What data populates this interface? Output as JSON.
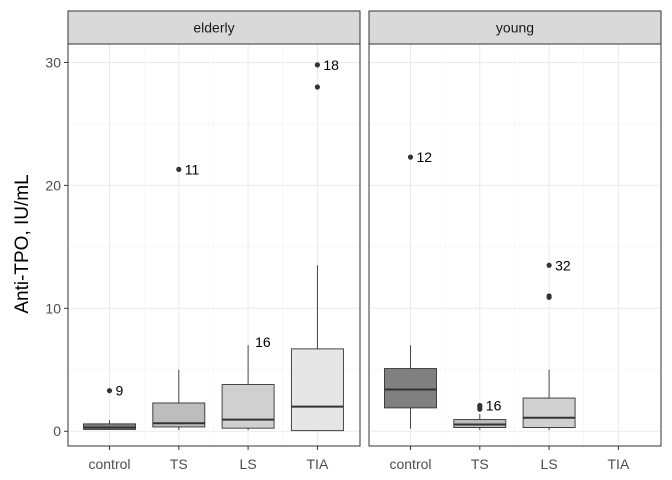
{
  "chart_data": {
    "type": "boxplot",
    "ylabel": "Anti-TPO, IU/mL",
    "ylim": [
      -1.2,
      31.5
    ],
    "y_ticks": [
      0,
      10,
      20,
      30
    ],
    "categories": [
      "control",
      "TS",
      "LS",
      "TIA"
    ],
    "grid": true,
    "panels": [
      {
        "name": "elderly",
        "boxes": [
          {
            "category": "control",
            "min": 0.1,
            "q1": 0.15,
            "median": 0.3,
            "q3": 0.6,
            "max": 0.9,
            "fill": "#808080",
            "outliers": [
              {
                "y": 3.3,
                "label": "9"
              }
            ]
          },
          {
            "category": "TS",
            "min": 0.1,
            "q1": 0.35,
            "median": 0.65,
            "q3": 2.3,
            "max": 5.0,
            "fill": "#bdbdbd",
            "outliers": [
              {
                "y": 21.3,
                "label": "11"
              }
            ]
          },
          {
            "category": "LS",
            "min": 0.1,
            "q1": 0.25,
            "median": 0.95,
            "q3": 3.8,
            "max": 7.0,
            "fill": "#d0d0d0",
            "outliers": [],
            "annotations": [
              {
                "y": 7.0,
                "label": "16"
              }
            ]
          },
          {
            "category": "TIA",
            "min": 0.0,
            "q1": 0.05,
            "median": 2.0,
            "q3": 6.7,
            "max": 13.5,
            "fill": "#e6e6e6",
            "outliers": [
              {
                "y": 29.8,
                "label": "18"
              },
              {
                "y": 28.0,
                "label": ""
              }
            ]
          }
        ]
      },
      {
        "name": "young",
        "boxes": [
          {
            "category": "control",
            "min": 0.2,
            "q1": 1.9,
            "median": 3.4,
            "q3": 5.1,
            "max": 7.0,
            "fill": "#808080",
            "outliers": [
              {
                "y": 22.3,
                "label": "12"
              }
            ]
          },
          {
            "category": "TS",
            "min": 0.1,
            "q1": 0.3,
            "median": 0.55,
            "q3": 0.95,
            "max": 1.4,
            "fill": "#bdbdbd",
            "outliers": [
              {
                "y": 2.1,
                "label": "16"
              },
              {
                "y": 2.0,
                "label": ""
              },
              {
                "y": 1.8,
                "label": ""
              }
            ]
          },
          {
            "category": "LS",
            "min": 0.1,
            "q1": 0.3,
            "median": 1.1,
            "q3": 2.7,
            "max": 5.0,
            "fill": "#d0d0d0",
            "outliers": [
              {
                "y": 13.5,
                "label": "32"
              },
              {
                "y": 11.0,
                "label": ""
              },
              {
                "y": 10.9,
                "label": ""
              }
            ]
          }
        ]
      }
    ]
  }
}
